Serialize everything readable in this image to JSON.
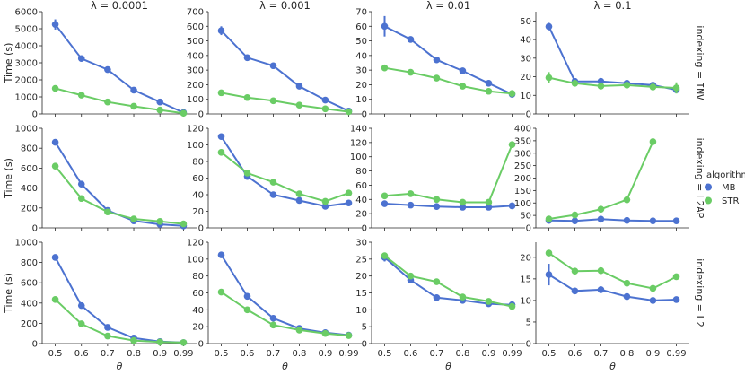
{
  "chart_data": {
    "type": "line",
    "layout": "facet-grid",
    "column_facet": "λ",
    "row_facet": "indexing",
    "col_titles": [
      "λ = 0.0001",
      "λ = 0.001",
      "λ = 0.01",
      "λ = 0.1"
    ],
    "row_titles_prefix": "indexing = ",
    "row_titles": [
      "INV",
      "L2AP",
      "L2"
    ],
    "xlabel": "θ",
    "ylabel": "Time (s)",
    "x": [
      0.5,
      0.6,
      0.7,
      0.8,
      0.9,
      0.99
    ],
    "x_tick_labels": [
      "0.5",
      "0.6",
      "0.7",
      "0.8",
      "0.9",
      "0.99"
    ],
    "legend": {
      "title": "algorithm",
      "placement": "right",
      "entries": [
        {
          "name": "MB",
          "color": "#4c72d0"
        },
        {
          "name": "STR",
          "color": "#6acc65"
        }
      ]
    },
    "colors": {
      "MB": "#4c72d0",
      "STR": "#6acc65",
      "axis": "#262626"
    },
    "panels": [
      [
        {
          "ylim": [
            0,
            6000
          ],
          "yticks": [
            0,
            1000,
            2000,
            3000,
            4000,
            5000,
            6000
          ],
          "series": [
            {
              "name": "MB",
              "values": [
                5250,
                3250,
                2600,
                1400,
                700,
                80
              ],
              "errors": [
                300,
                0,
                0,
                0,
                0,
                0
              ]
            },
            {
              "name": "STR",
              "values": [
                1500,
                1100,
                700,
                450,
                230,
                40
              ],
              "errors": [
                0,
                0,
                0,
                0,
                0,
                0
              ]
            }
          ]
        },
        {
          "ylim": [
            0,
            700
          ],
          "yticks": [
            0,
            100,
            200,
            300,
            400,
            500,
            600,
            700
          ],
          "series": [
            {
              "name": "MB",
              "values": [
                570,
                385,
                330,
                190,
                95,
                20
              ],
              "errors": [
                30,
                0,
                0,
                0,
                0,
                0
              ]
            },
            {
              "name": "STR",
              "values": [
                145,
                112,
                90,
                60,
                35,
                15
              ],
              "errors": [
                0,
                0,
                0,
                0,
                0,
                0
              ]
            }
          ]
        },
        {
          "ylim": [
            0,
            70
          ],
          "yticks": [
            0,
            10,
            20,
            30,
            40,
            50,
            60,
            70
          ],
          "series": [
            {
              "name": "MB",
              "values": [
                60,
                51,
                37,
                29.5,
                21,
                13.5
              ],
              "errors": [
                7,
                0,
                0,
                0,
                0,
                0
              ]
            },
            {
              "name": "STR",
              "values": [
                31.5,
                28.5,
                24.5,
                19,
                15.5,
                14
              ],
              "errors": [
                0,
                0,
                0,
                0,
                0,
                0
              ]
            }
          ]
        },
        {
          "ylim": [
            0,
            55
          ],
          "yticks": [
            0,
            10,
            20,
            30,
            40,
            50
          ],
          "series": [
            {
              "name": "MB",
              "values": [
                47,
                17.5,
                17.5,
                16.5,
                15.5,
                13
              ],
              "errors": [
                2,
                0,
                0,
                0,
                0,
                0
              ]
            },
            {
              "name": "STR",
              "values": [
                19.5,
                16.5,
                15,
                15.5,
                14.5,
                14
              ],
              "errors": [
                3,
                0,
                0,
                0,
                0,
                3
              ]
            }
          ]
        }
      ],
      [
        {
          "ylim": [
            0,
            1000
          ],
          "yticks": [
            0,
            200,
            400,
            600,
            800,
            1000
          ],
          "series": [
            {
              "name": "MB",
              "values": [
                860,
                440,
                175,
                70,
                35,
                20
              ],
              "errors": [
                0,
                0,
                0,
                0,
                0,
                0
              ]
            },
            {
              "name": "STR",
              "values": [
                620,
                295,
                160,
                90,
                65,
                40
              ],
              "errors": [
                0,
                0,
                0,
                0,
                0,
                0
              ]
            }
          ]
        },
        {
          "ylim": [
            0,
            120
          ],
          "yticks": [
            0,
            20,
            40,
            60,
            80,
            100,
            120
          ],
          "series": [
            {
              "name": "MB",
              "values": [
                110,
                62,
                40,
                33,
                26,
                30
              ],
              "errors": [
                0,
                0,
                0,
                0,
                0,
                0
              ]
            },
            {
              "name": "STR",
              "values": [
                91,
                66,
                55,
                41,
                32,
                42
              ],
              "errors": [
                0,
                0,
                0,
                0,
                0,
                0
              ]
            }
          ]
        },
        {
          "ylim": [
            0,
            140
          ],
          "yticks": [
            0,
            20,
            40,
            60,
            80,
            100,
            120,
            140
          ],
          "series": [
            {
              "name": "MB",
              "values": [
                34,
                32,
                30,
                29,
                29,
                31
              ],
              "errors": [
                0,
                0,
                0,
                0,
                0,
                0
              ]
            },
            {
              "name": "STR",
              "values": [
                45,
                48,
                40,
                36,
                36,
                117
              ],
              "errors": [
                0,
                0,
                0,
                0,
                0,
                0
              ]
            }
          ]
        },
        {
          "ylim": [
            0,
            400
          ],
          "yticks": [
            0,
            50,
            100,
            150,
            200,
            250,
            300,
            350,
            400
          ],
          "series": [
            {
              "name": "MB",
              "values": [
                30,
                28,
                35,
                30,
                28,
                28
              ],
              "errors": [
                0,
                0,
                0,
                0,
                0,
                0
              ]
            },
            {
              "name": "STR",
              "values": [
                36,
                52,
                75,
                113,
                346,
                null
              ],
              "errors": [
                0,
                0,
                0,
                0,
                0,
                0
              ]
            }
          ]
        }
      ],
      [
        {
          "ylim": [
            0,
            1000
          ],
          "yticks": [
            0,
            200,
            400,
            600,
            800,
            1000
          ],
          "series": [
            {
              "name": "MB",
              "values": [
                850,
                375,
                160,
                55,
                20,
                10
              ],
              "errors": [
                0,
                0,
                0,
                0,
                0,
                0
              ]
            },
            {
              "name": "STR",
              "values": [
                435,
                195,
                75,
                30,
                15,
                10
              ],
              "errors": [
                0,
                0,
                0,
                0,
                0,
                0
              ]
            }
          ]
        },
        {
          "ylim": [
            0,
            120
          ],
          "yticks": [
            0,
            20,
            40,
            60,
            80,
            100,
            120
          ],
          "series": [
            {
              "name": "MB",
              "values": [
                105,
                56,
                30,
                18,
                13,
                10
              ],
              "errors": [
                3,
                0,
                0,
                0,
                0,
                0
              ]
            },
            {
              "name": "STR",
              "values": [
                61,
                40,
                22,
                16,
                12,
                9.5
              ],
              "errors": [
                0,
                0,
                0,
                0,
                0,
                0
              ]
            }
          ]
        },
        {
          "ylim": [
            0,
            30
          ],
          "yticks": [
            0,
            5,
            10,
            15,
            20,
            25,
            30
          ],
          "series": [
            {
              "name": "MB",
              "values": [
                25.5,
                18.8,
                13.6,
                12.8,
                11.8,
                11.5
              ],
              "errors": [
                1.2,
                0,
                0,
                0,
                0,
                0
              ]
            },
            {
              "name": "STR",
              "values": [
                26,
                20,
                18.3,
                13.8,
                12.5,
                11
              ],
              "errors": [
                0,
                0,
                0,
                0,
                0,
                0
              ]
            }
          ]
        },
        {
          "ylim": [
            0,
            23.5
          ],
          "yticks": [
            0,
            5,
            10,
            15,
            20
          ],
          "series": [
            {
              "name": "MB",
              "values": [
                16,
                12.2,
                12.5,
                10.9,
                10,
                10.2
              ],
              "errors": [
                2.5,
                0,
                0,
                0,
                0,
                0
              ]
            },
            {
              "name": "STR",
              "values": [
                21,
                16.8,
                16.9,
                14,
                12.8,
                15.5
              ],
              "errors": [
                0,
                0,
                0,
                0,
                0,
                0
              ]
            }
          ]
        }
      ]
    ]
  }
}
